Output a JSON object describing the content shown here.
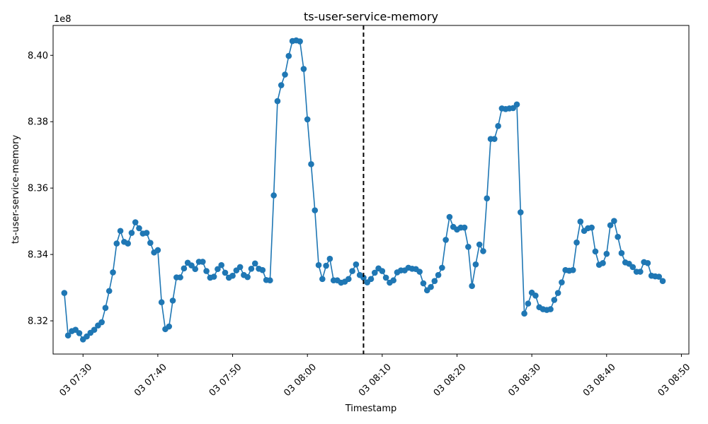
{
  "chart_data": {
    "type": "line",
    "title": "ts-user-service-memory",
    "xlabel": "Timestamp",
    "ylabel": "ts-user-service-memory",
    "y_offset_label": "1e8",
    "y_scale": 100000000,
    "series_color": "#1f77b4",
    "marker_line_color": "#000000",
    "x_start": "2024-01-03T07:27:30",
    "x_step_seconds": 30,
    "xlim": [
      "2024-01-03T07:26:00",
      "2024-01-03T08:51:00"
    ],
    "ylim": [
      8.31,
      8.409
    ],
    "x_ticks": [
      "03 07:30",
      "03 07:40",
      "03 07:50",
      "03 08:00",
      "03 08:10",
      "03 08:20",
      "03 08:30",
      "03 08:40",
      "03 08:50"
    ],
    "y_ticks": [
      "8.32",
      "8.34",
      "8.36",
      "8.38",
      "8.40"
    ],
    "vertical_marker": "03 08:07:30",
    "values": [
      8.3284,
      8.3156,
      8.3169,
      8.3173,
      8.3163,
      8.3144,
      8.3153,
      8.3164,
      8.3173,
      8.3186,
      8.3196,
      8.3239,
      8.329,
      8.3346,
      8.3433,
      8.3471,
      8.3438,
      8.3433,
      8.3465,
      8.3497,
      8.3479,
      8.3463,
      8.3465,
      8.3435,
      8.3406,
      8.3413,
      8.3256,
      8.3175,
      8.3183,
      8.3261,
      8.3331,
      8.3331,
      8.3358,
      8.3375,
      8.3367,
      8.3356,
      8.3378,
      8.3378,
      8.335,
      8.333,
      8.3333,
      8.3356,
      8.3368,
      8.3345,
      8.333,
      8.3336,
      8.3352,
      8.3362,
      8.3338,
      8.3332,
      8.3357,
      8.3373,
      8.3357,
      8.3353,
      8.3323,
      8.3322,
      8.3578,
      8.3862,
      8.391,
      8.3942,
      8.3998,
      8.4043,
      8.4045,
      8.4042,
      8.3959,
      8.3807,
      8.3672,
      8.3533,
      8.3368,
      8.3326,
      8.3366,
      8.3387,
      8.3322,
      8.3322,
      8.3315,
      8.3318,
      8.3326,
      8.335,
      8.337,
      8.3338,
      8.333,
      8.3316,
      8.3326,
      8.3345,
      8.3358,
      8.335,
      8.333,
      8.3315,
      8.3322,
      8.3346,
      8.3352,
      8.3352,
      8.336,
      8.3357,
      8.3356,
      8.3348,
      8.3313,
      8.3292,
      8.3302,
      8.332,
      8.3338,
      8.336,
      8.3444,
      8.3513,
      8.3483,
      8.3475,
      8.3481,
      8.3481,
      8.3423,
      8.3305,
      8.337,
      8.343,
      8.341,
      8.3569,
      8.3748,
      8.3748,
      8.3787,
      8.384,
      8.3838,
      8.384,
      8.3841,
      8.3852,
      8.3527,
      8.3222,
      8.3252,
      8.3285,
      8.3276,
      8.3241,
      8.3235,
      8.3233,
      8.3235,
      8.3263,
      8.3284,
      8.3316,
      8.3353,
      8.3351,
      8.3353,
      8.3436,
      8.3499,
      8.3471,
      8.3479,
      8.3481,
      8.3409,
      8.3369,
      8.3374,
      8.3402,
      8.3488,
      8.3501,
      8.3453,
      8.3404,
      8.3376,
      8.3372,
      8.3362,
      8.3348,
      8.3348,
      8.3377,
      8.3374,
      8.3336,
      8.3334,
      8.3333,
      8.332
    ]
  }
}
